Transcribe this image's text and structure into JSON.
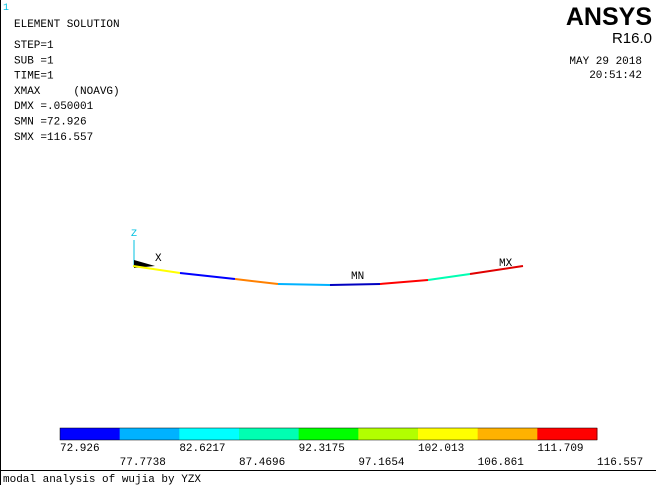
{
  "window_number": "1",
  "title": "ELEMENT SOLUTION",
  "info": [
    "STEP=1",
    "SUB =1",
    "TIME=1",
    "XMAX     (NOAVG)",
    "DMX =.050001",
    "SMN =72.926",
    "SMX =116.557"
  ],
  "brand": {
    "logo": "ANSYS",
    "version": "R16.0",
    "date": "MAY 29 2018",
    "time": "20:51:42"
  },
  "triad": {
    "z": "Z",
    "x": "X"
  },
  "markers": {
    "min": "MN",
    "max": "MX"
  },
  "legend": {
    "colors": [
      "#0000ff",
      "#00b2ff",
      "#00ffff",
      "#00ffb2",
      "#00ff00",
      "#b2ff00",
      "#ffff00",
      "#ffb200",
      "#ff0000"
    ],
    "values": [
      "72.926",
      "77.7738",
      "82.6217",
      "87.4696",
      "92.3175",
      "97.1654",
      "102.013",
      "106.861",
      "111.709",
      "116.557"
    ]
  },
  "caption": "modal analysis of wujia by YZX"
}
